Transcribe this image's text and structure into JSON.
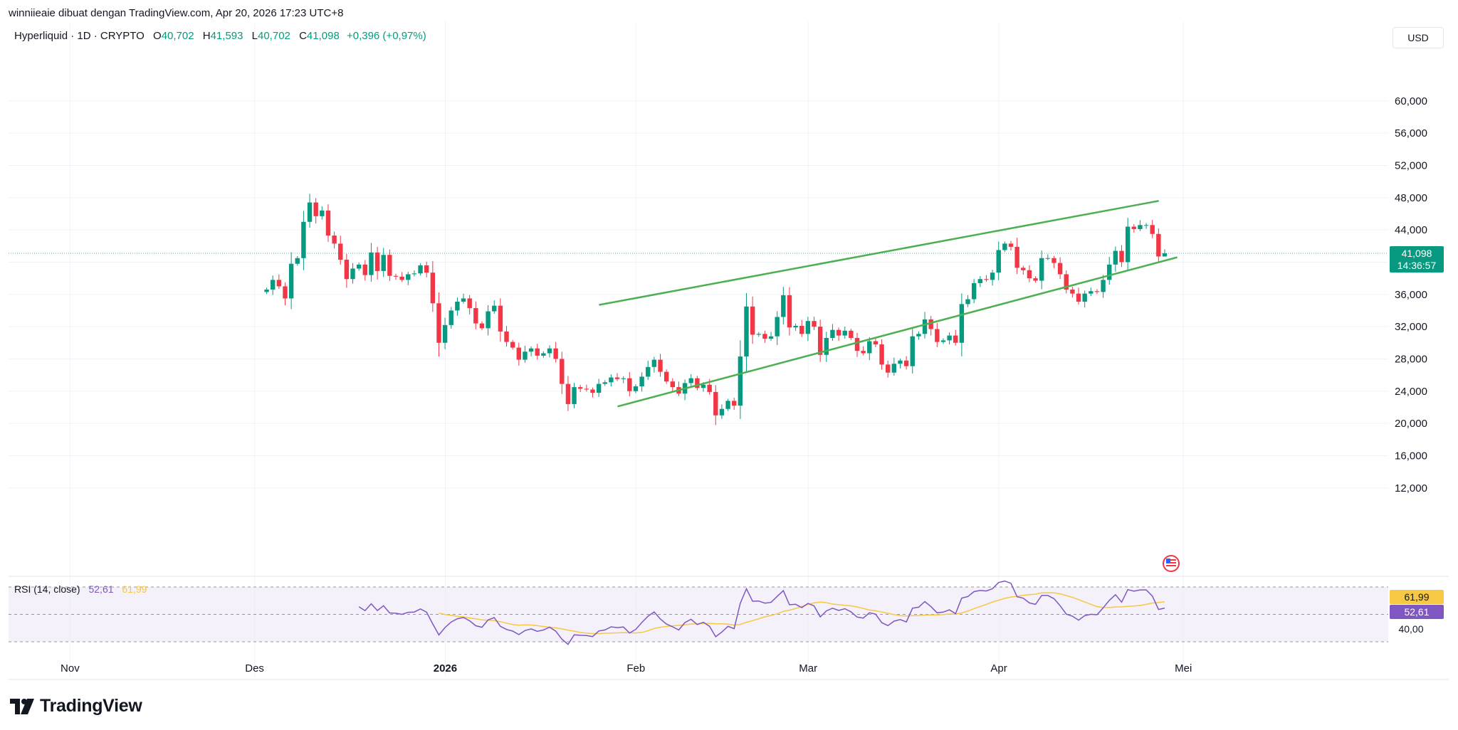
{
  "header": {
    "attribution": "winniieaie dibuat dengan TradingView.com, Apr 20, 2026 17:23 UTC+8"
  },
  "legend": {
    "symbol": "Hyperliquid · 1D · CRYPTO",
    "open_label": "O",
    "open": "40,702",
    "high_label": "H",
    "high": "41,593",
    "low_label": "L",
    "low": "40,702",
    "close_label": "C",
    "close": "41,098",
    "change": "+0,396 (+0,97%)"
  },
  "currency": "USD",
  "last_price": {
    "value": "41,098",
    "countdown": "14:36:57"
  },
  "rsi": {
    "name": "RSI (14, close)",
    "value": "52,61",
    "ma": "61,99",
    "axis_label": "40,00"
  },
  "brand": "TradingView",
  "colors": {
    "up": "#089981",
    "down": "#f23645",
    "rsi_line": "#7e57c2",
    "rsi_ma": "#f7c844",
    "trendline": "#4caf50"
  },
  "chart_data": {
    "type": "candlestick",
    "price_axis": {
      "ticks": [
        12000,
        16000,
        20000,
        24000,
        28000,
        32000,
        36000,
        40000,
        44000,
        48000,
        52000,
        56000,
        60000
      ],
      "tick_labels": [
        "12,000",
        "16,000",
        "20,000",
        "24,000",
        "28,000",
        "32,000",
        "36,000",
        "",
        "44,000",
        "48,000",
        "52,000",
        "56,000",
        "60,000"
      ]
    },
    "time_axis": {
      "labels": [
        "Nov",
        "Des",
        "2026",
        "Feb",
        "Mar",
        "Apr",
        "Mei"
      ],
      "bold": [
        "2026"
      ]
    },
    "closes": [
      36600,
      37800,
      37000,
      35500,
      39800,
      40500,
      45000,
      47400,
      45700,
      46400,
      43300,
      42300,
      40300,
      37900,
      39200,
      39700,
      38400,
      41200,
      38900,
      40900,
      38300,
      38200,
      37800,
      38500,
      38600,
      39600,
      38700,
      34900,
      30000,
      32200,
      34000,
      35100,
      35500,
      34300,
      32400,
      31800,
      33900,
      34600,
      31400,
      30100,
      29400,
      27900,
      28900,
      29300,
      28400,
      28700,
      29300,
      28000,
      24900,
      22400,
      24500,
      24300,
      24200,
      23800,
      24900,
      25100,
      25700,
      25500,
      25600,
      24000,
      24600,
      25800,
      27000,
      27900,
      26400,
      25200,
      24500,
      23700,
      25000,
      25600,
      24400,
      24800,
      23900,
      21000,
      21800,
      22800,
      22200,
      28300,
      34500,
      31000,
      31100,
      30500,
      30800,
      33200,
      35900,
      31900,
      32100,
      31100,
      32700,
      32000,
      28500,
      30600,
      31600,
      30900,
      31500,
      30600,
      29000,
      28700,
      30200,
      29800,
      27300,
      26300,
      27400,
      27800,
      27100,
      30800,
      31100,
      32900,
      31700,
      30100,
      30300,
      30900,
      30000,
      34800,
      35400,
      37400,
      37900,
      37800,
      38700,
      41500,
      42300,
      41900,
      39300,
      39000,
      38000,
      37700,
      40500,
      40500,
      39900,
      38500,
      36600,
      36100,
      35100,
      36100,
      36400,
      36300,
      37800,
      39700,
      41400,
      40000,
      44400,
      44100,
      44600,
      44600,
      43500,
      40700,
      41098
    ],
    "last": {
      "open": 40702,
      "high": 41593,
      "low": 40702,
      "close": 41098
    },
    "channel": {
      "upper": {
        "from": "2026-01-26",
        "to": "2026-04-27",
        "y_from": 34700,
        "y_to": 47600
      },
      "lower": {
        "from": "2026-01-26",
        "to": "2026-04-30",
        "y_from": 22100,
        "y_to": 40600
      }
    },
    "rsi_range": [
      30,
      70
    ],
    "rsi_level_labels": [
      "40,00"
    ]
  }
}
